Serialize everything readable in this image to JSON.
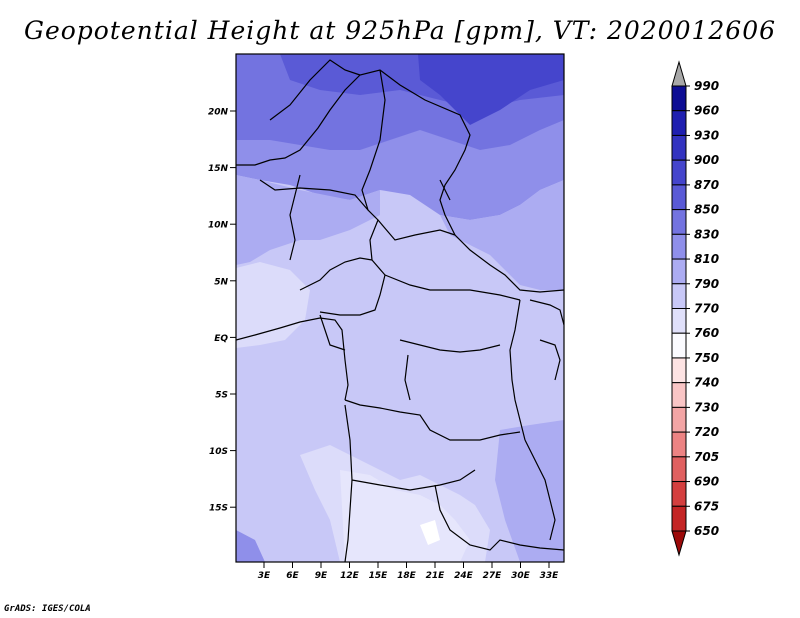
{
  "title": "Geopotential Height at 925hPa [gpm], VT: 2020012606",
  "credit": "GrADS: IGES/COLA",
  "map": {
    "lat_labels": [
      "20N",
      "15N",
      "10N",
      "5N",
      "EQ",
      "5S",
      "10S",
      "15S"
    ],
    "lon_labels": [
      "3E",
      "6E",
      "9E",
      "12E",
      "15E",
      "18E",
      "21E",
      "24E",
      "27E",
      "30E",
      "33E"
    ]
  },
  "colorbar": {
    "labels": [
      "990",
      "960",
      "930",
      "900",
      "870",
      "850",
      "830",
      "810",
      "790",
      "770",
      "760",
      "750",
      "740",
      "730",
      "720",
      "705",
      "690",
      "675",
      "650"
    ],
    "colors": [
      "#0d0d94",
      "#1f1fb0",
      "#3333c0",
      "#4545cc",
      "#5a5ad6",
      "#7373e0",
      "#8f8fea",
      "#acacf2",
      "#c8c8f7",
      "#e0e0fa",
      "#fbfbff",
      "#fde3e3",
      "#f9c5c5",
      "#f3a5a5",
      "#ec8383",
      "#e06060",
      "#d43f3f",
      "#c42525",
      "#b01010"
    ],
    "top_arrow_color": "#a8a8a8",
    "bottom_arrow_color": "#9c0a0a"
  }
}
